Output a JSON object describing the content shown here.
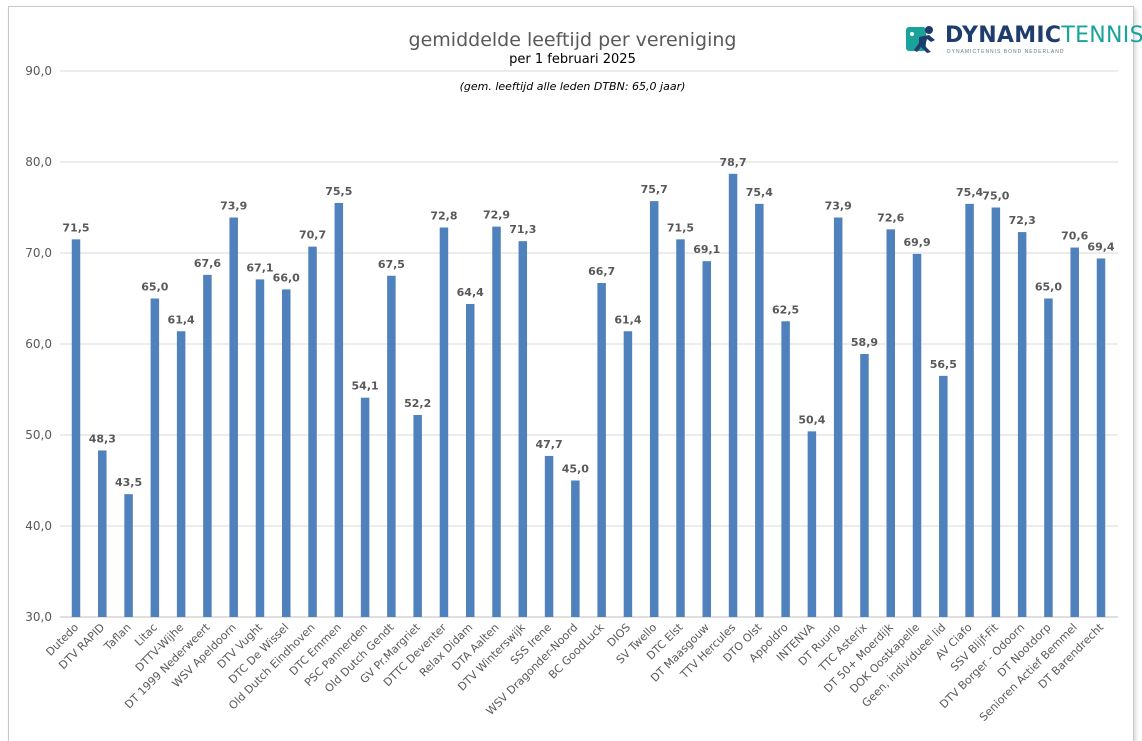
{
  "header": {
    "title": "gemiddelde leeftijd per vereniging",
    "subtitle": "per 1 februari 2025",
    "note": "(gem. leeftijd alle leden DTBN: 65,0 jaar)"
  },
  "logo": {
    "name_bold": "DYNAMIC",
    "name_light": "TENNIS",
    "tagline": "DYNAMICTENNIS BOND NEDERLAND",
    "icon": "tennis-player-logo-icon"
  },
  "colors": {
    "bar": "#4f81bd",
    "grid": "#d9d9d9",
    "text": "#595959",
    "logo_dark": "#1f3c6e",
    "logo_accent": "#1aa39a"
  },
  "chart_data": {
    "type": "bar",
    "title": "gemiddelde leeftijd per vereniging",
    "subtitle": "per 1 februari 2025",
    "xlabel": "",
    "ylabel": "",
    "ylim": [
      30,
      90
    ],
    "yticks": [
      "30,0",
      "40,0",
      "50,0",
      "60,0",
      "70,0",
      "80,0",
      "90,0"
    ],
    "grid": true,
    "legend": "none",
    "categories": [
      "Dutedo",
      "DTV RAPID",
      "Taflan",
      "Litac",
      "DTTV-Wijhe",
      "DT 1999 Nederweert",
      "WSV Apeldoorn",
      "DTV Vught",
      "DTC De Wissel",
      "Old Dutch Eindhoven",
      "DTC Emmen",
      "PSC Pannerden",
      "Old Dutch Gendt",
      "GV Pr.Margriet",
      "DTTC Deventer",
      "Relax Didam",
      "DTA Aalten",
      "DTV Winterswijk",
      "SSS Irene",
      "WSV Dragonder-Noord",
      "BC GoodLuck",
      "DIOS",
      "SV Twello",
      "DTC Elst",
      "DT Maasgouw",
      "TTV Hercules",
      "DTO Olst",
      "Appoldro",
      "INTENVA",
      "DT Ruurlo",
      "TTC Asterix",
      "DT 50+ Moerdijk",
      "DOK Oostkapelle",
      "Geen, individueel lid",
      "AV Ciafo",
      "SSV Blijf-Fit",
      "DTV Borger - Odoorn",
      "DT Nootdorp",
      "Senioren Actief Bemmel",
      "DT Barendrecht"
    ],
    "values": [
      71.5,
      48.3,
      43.5,
      65.0,
      61.4,
      67.6,
      73.9,
      67.1,
      66.0,
      70.7,
      75.5,
      54.1,
      67.5,
      52.2,
      72.8,
      64.4,
      72.9,
      71.3,
      47.7,
      45.0,
      66.7,
      61.4,
      75.7,
      71.5,
      69.1,
      78.7,
      75.4,
      62.5,
      50.4,
      73.9,
      58.9,
      72.6,
      69.9,
      56.5,
      75.4,
      75.0,
      72.3,
      65.0,
      70.6,
      69.4
    ],
    "data_labels": [
      "71,5",
      "48,3",
      "43,5",
      "65,0",
      "61,4",
      "67,6",
      "73,9",
      "67,1",
      "66,0",
      "70,7",
      "75,5",
      "54,1",
      "67,5",
      "52,2",
      "72,8",
      "64,4",
      "72,9",
      "71,3",
      "47,7",
      "45,0",
      "66,7",
      "61,4",
      "75,7",
      "71,5",
      "69,1",
      "78,7",
      "75,4",
      "62,5",
      "50,4",
      "73,9",
      "58,9",
      "72,6",
      "69,9",
      "56,5",
      "75,4",
      "75,0",
      "72,3",
      "65,0",
      "70,6",
      "69,4"
    ]
  }
}
